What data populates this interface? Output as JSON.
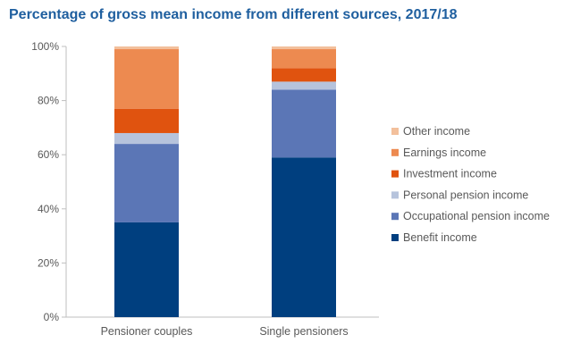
{
  "chart_data": {
    "type": "bar",
    "stacked": true,
    "title": "Percentage of gross mean income from different sources, 2017/18",
    "xlabel": "",
    "ylabel": "",
    "ylim": [
      0,
      100
    ],
    "yticks": [
      "0%",
      "20%",
      "40%",
      "60%",
      "80%",
      "100%"
    ],
    "grid": false,
    "legend_position": "right",
    "categories": [
      "Pensioner couples",
      "Single pensioners"
    ],
    "series": [
      {
        "name": "Benefit income",
        "color": "#003f7f",
        "values": [
          35,
          59
        ]
      },
      {
        "name": "Occupational pension income",
        "color": "#5b76b6",
        "values": [
          29,
          25
        ]
      },
      {
        "name": "Personal pension income",
        "color": "#b6c3dc",
        "values": [
          4,
          3
        ]
      },
      {
        "name": "Investment income",
        "color": "#e0530f",
        "values": [
          9,
          5
        ]
      },
      {
        "name": "Earnings income",
        "color": "#ed8a50",
        "values": [
          22,
          7
        ]
      },
      {
        "name": "Other income",
        "color": "#f3c09c",
        "values": [
          1,
          1
        ]
      }
    ]
  }
}
